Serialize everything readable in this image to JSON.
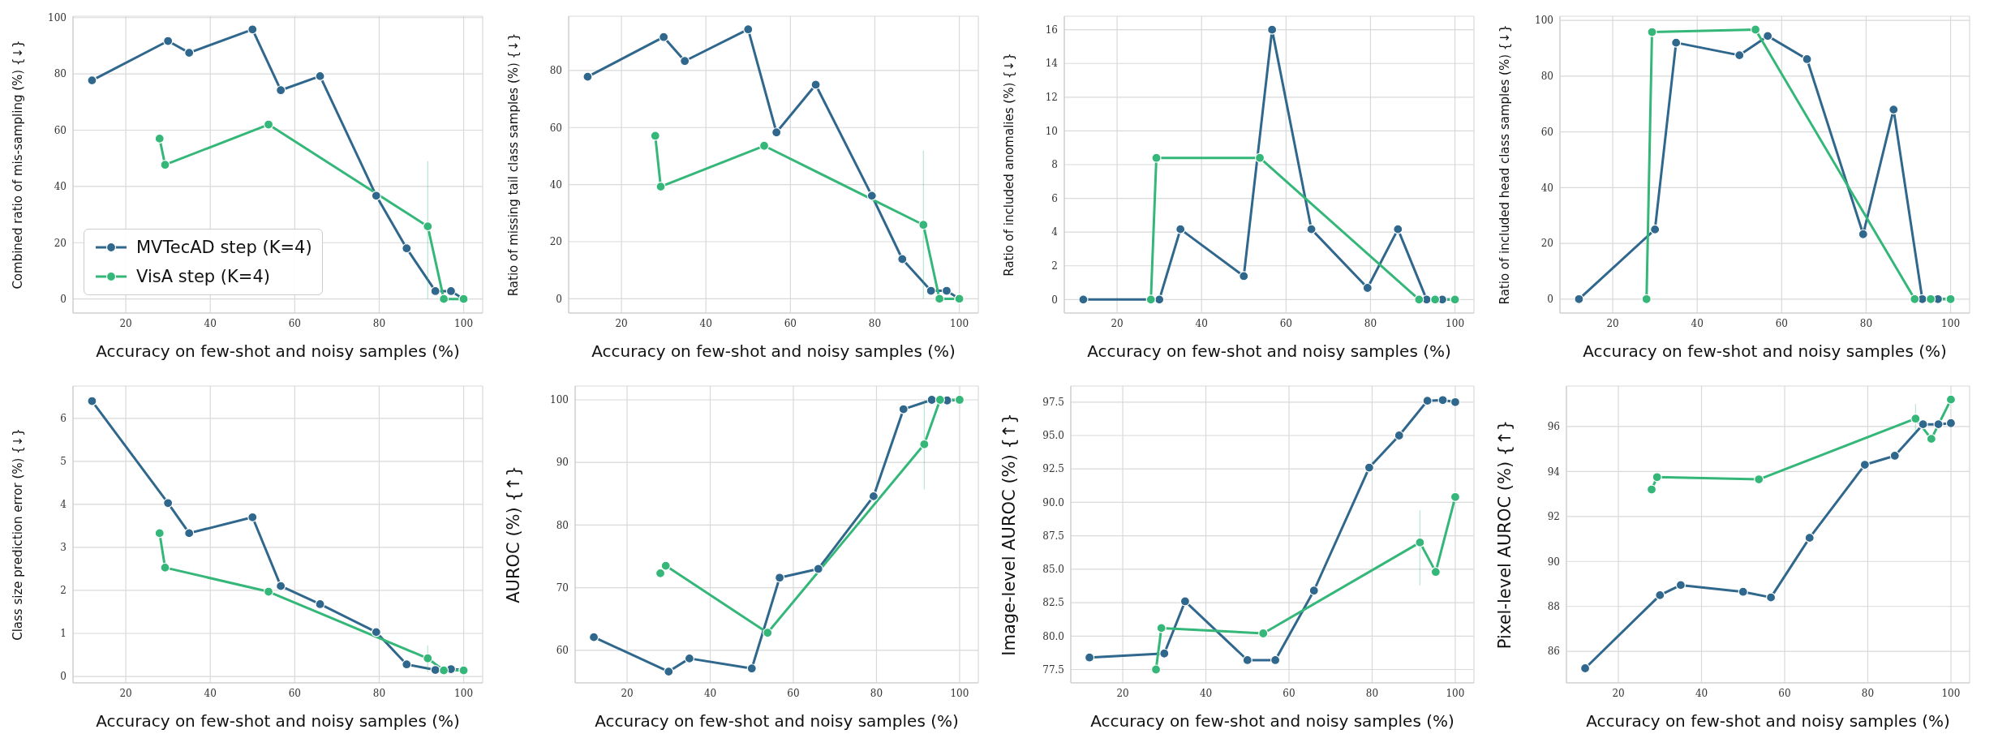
{
  "chart_data": [
    {
      "type": "line",
      "ylabel": "Combined ratio of mis-sampling (%) {↓}",
      "xlabel": "Accuracy on few-shot and noisy samples (%)",
      "xlim": [
        7.5,
        104.5
      ],
      "xticks": [
        20,
        40,
        60,
        80,
        100
      ],
      "ylim": [
        -5,
        100.5
      ],
      "yticks": [
        0,
        20,
        40,
        60,
        80,
        100
      ],
      "grid": true,
      "marker": "circle",
      "legend": "bottom left",
      "series": [
        {
          "name": "MVTecAD step (K=4)",
          "color": "#30678d",
          "x": [
            12,
            30,
            35,
            50,
            56.7,
            66,
            79.3,
            86.5,
            93.3,
            97,
            100
          ],
          "values": [
            77.7,
            91.7,
            87.5,
            95.8,
            74.2,
            79.2,
            36.7,
            18,
            2.8,
            2.8,
            0
          ]
        },
        {
          "name": "VisA step (K=4)",
          "color": "#35b779",
          "x": [
            28,
            29.3,
            53.8,
            91.5,
            95.3,
            100
          ],
          "values": [
            57,
            47.7,
            62,
            25.8,
            0,
            0
          ],
          "errors": [
            null,
            null,
            null,
            [
              0,
              49
            ],
            null,
            null
          ]
        }
      ]
    },
    {
      "type": "line",
      "ylabel": "Ratio of missing tail class samples (%) {↓}",
      "xlabel": "Accuracy on few-shot and noisy samples (%)",
      "xlim": [
        7.5,
        104.5
      ],
      "xticks": [
        20,
        40,
        60,
        80,
        100
      ],
      "ylim": [
        -5,
        99
      ],
      "yticks": [
        0,
        20,
        40,
        60,
        80
      ],
      "grid": true,
      "marker": "circle",
      "series": [
        {
          "color": "#30678d",
          "x": [
            12,
            30,
            35,
            50,
            56.7,
            66,
            79.3,
            86.5,
            93.3,
            97,
            100
          ],
          "values": [
            77.8,
            91.7,
            83.3,
            94.4,
            58.3,
            75,
            36.1,
            13.9,
            2.8,
            2.8,
            0
          ]
        },
        {
          "color": "#35b779",
          "x": [
            28,
            29.3,
            53.8,
            91.5,
            95.3,
            100
          ],
          "values": [
            57.1,
            39.3,
            53.6,
            25.9,
            0,
            0
          ],
          "errors": [
            null,
            null,
            null,
            [
              0,
              52
            ],
            null,
            null
          ]
        }
      ]
    },
    {
      "type": "line",
      "ylabel": "Ratio of included anomalies (%) {↓}",
      "xlabel": "Accuracy on few-shot and noisy samples (%)",
      "xlim": [
        7.5,
        104.5
      ],
      "xticks": [
        20,
        40,
        60,
        80,
        100
      ],
      "ylim": [
        -0.8,
        16.8
      ],
      "yticks": [
        0,
        2,
        4,
        6,
        8,
        10,
        12,
        14,
        16
      ],
      "grid": true,
      "marker": "circle",
      "series": [
        {
          "color": "#30678d",
          "x": [
            12,
            30,
            35,
            50,
            56.7,
            66,
            79.3,
            86.5,
            93.3,
            97,
            100
          ],
          "values": [
            0,
            0,
            4.17,
            1.39,
            16,
            4.17,
            0.69,
            4.17,
            0,
            0,
            0
          ]
        },
        {
          "color": "#35b779",
          "x": [
            28,
            29.3,
            53.8,
            91.5,
            95.3,
            100
          ],
          "values": [
            0,
            8.4,
            8.4,
            0,
            0,
            0
          ]
        }
      ]
    },
    {
      "type": "line",
      "ylabel": "Ratio of included head class samples (%) {↓}",
      "xlabel": "Accuracy on few-shot and noisy samples (%)",
      "xlim": [
        7.5,
        104.5
      ],
      "xticks": [
        20,
        40,
        60,
        80,
        100
      ],
      "ylim": [
        -5,
        101.5
      ],
      "yticks": [
        0,
        20,
        40,
        60,
        80,
        100
      ],
      "grid": true,
      "marker": "circle",
      "series": [
        {
          "color": "#30678d",
          "x": [
            12,
            30,
            35,
            50,
            56.7,
            66,
            79.3,
            86.5,
            93.3,
            97,
            100
          ],
          "values": [
            0,
            25,
            92,
            87.5,
            94.4,
            86.1,
            23.3,
            68,
            0,
            0,
            0
          ]
        },
        {
          "color": "#35b779",
          "x": [
            28,
            29.3,
            53.8,
            91.5,
            95.3,
            100
          ],
          "values": [
            0,
            95.8,
            96.7,
            0,
            0,
            0
          ]
        }
      ]
    },
    {
      "type": "line",
      "ylabel": "Class size prediction error (%) {↓}",
      "xlabel": "Accuracy on few-shot and noisy samples (%)",
      "xlim": [
        7.5,
        104.5
      ],
      "xticks": [
        20,
        40,
        60,
        80,
        100
      ],
      "ylim": [
        -0.15,
        6.75
      ],
      "yticks": [
        0,
        1,
        2,
        3,
        4,
        5,
        6
      ],
      "grid": true,
      "marker": "circle",
      "series": [
        {
          "color": "#30678d",
          "x": [
            12,
            30,
            35,
            50,
            56.7,
            66,
            79.3,
            86.5,
            93.3,
            97,
            100
          ],
          "values": [
            6.4,
            4.03,
            3.33,
            3.7,
            2.1,
            1.68,
            1.03,
            0.28,
            0.15,
            0.17,
            0.15
          ]
        },
        {
          "color": "#35b779",
          "x": [
            28,
            29.3,
            53.8,
            91.5,
            95.3,
            100
          ],
          "values": [
            3.33,
            2.53,
            1.97,
            0.42,
            0.14,
            0.14
          ],
          "errors": [
            null,
            null,
            null,
            [
              0.1,
              0.72
            ],
            null,
            null
          ]
        }
      ]
    },
    {
      "type": "line",
      "ylabel": "AUROC (%) {↑}",
      "xlabel": "Accuracy on few-shot and noisy samples (%)",
      "xlim": [
        7.5,
        104.5
      ],
      "xticks": [
        20,
        40,
        60,
        80,
        100
      ],
      "ylim": [
        54.8,
        102.2
      ],
      "yticks": [
        60,
        70,
        80,
        90,
        100
      ],
      "grid": true,
      "marker": "circle",
      "series": [
        {
          "color": "#30678d",
          "x": [
            12,
            30,
            35,
            50,
            56.7,
            66,
            79.3,
            86.5,
            93.3,
            97,
            100
          ],
          "values": [
            62.1,
            56.6,
            58.7,
            57.1,
            71.6,
            73,
            84.6,
            98.5,
            100,
            99.9,
            100
          ]
        },
        {
          "color": "#35b779",
          "x": [
            28,
            29.3,
            53.8,
            91.5,
            95.3,
            100
          ],
          "values": [
            72.3,
            73.5,
            62.8,
            92.9,
            100,
            100
          ],
          "errors": [
            null,
            null,
            null,
            [
              85.7,
              100
            ],
            null,
            null
          ]
        }
      ]
    },
    {
      "type": "line",
      "ylabel": "Image-level AUROC (%) {↑}",
      "xlabel": "Accuracy on few-shot and noisy samples (%)",
      "xlim": [
        7.5,
        104.5
      ],
      "xticks": [
        20,
        40,
        60,
        80,
        100
      ],
      "ylim": [
        76.5,
        98.7
      ],
      "yticks": [
        77.5,
        {
          "value": 80,
          "label": "80.0"
        },
        82.5,
        {
          "value": 85,
          "label": "85.0"
        },
        87.5,
        {
          "value": 90,
          "label": "90.0"
        },
        92.5,
        {
          "value": 95,
          "label": "95.0"
        },
        97.5
      ],
      "grid": true,
      "marker": "circle",
      "series": [
        {
          "color": "#30678d",
          "x": [
            12,
            30,
            35,
            50,
            56.7,
            66,
            79.3,
            86.5,
            93.3,
            97,
            100
          ],
          "values": [
            78.4,
            78.7,
            82.6,
            78.2,
            78.2,
            83.4,
            92.6,
            95,
            97.6,
            97.65,
            97.5
          ]
        },
        {
          "color": "#35b779",
          "x": [
            28,
            29.3,
            53.8,
            91.5,
            95.3,
            100
          ],
          "values": [
            77.5,
            80.6,
            80.2,
            87,
            84.8,
            90.4
          ],
          "errors": [
            null,
            null,
            null,
            [
              83.8,
              89.4
            ],
            null,
            null
          ]
        }
      ]
    },
    {
      "type": "line",
      "ylabel": "Pixel-level AUROC (%) {↑}",
      "xlabel": "Accuracy on few-shot and noisy samples (%)",
      "xlim": [
        7.5,
        104.5
      ],
      "xticks": [
        20,
        40,
        60,
        80,
        100
      ],
      "ylim": [
        84.6,
        97.8
      ],
      "yticks": [
        86,
        88,
        90,
        92,
        94,
        96
      ],
      "grid": true,
      "marker": "circle",
      "series": [
        {
          "color": "#30678d",
          "x": [
            12,
            30,
            35,
            50,
            56.7,
            66,
            79.3,
            86.5,
            93.3,
            97,
            100
          ],
          "values": [
            85.25,
            88.5,
            88.95,
            88.65,
            88.4,
            91.05,
            94.3,
            94.7,
            96.1,
            96.1,
            96.15
          ]
        },
        {
          "color": "#35b779",
          "x": [
            28,
            29.3,
            53.8,
            91.5,
            95.3,
            100
          ],
          "values": [
            93.2,
            93.75,
            93.65,
            96.35,
            95.45,
            97.2
          ],
          "errors": [
            null,
            null,
            null,
            [
              95.7,
              97
            ],
            null,
            null
          ]
        }
      ]
    }
  ]
}
